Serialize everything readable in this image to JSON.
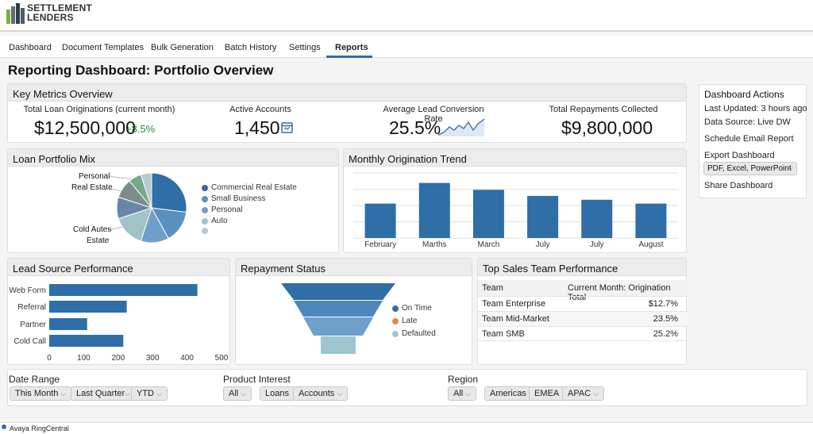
{
  "brand": {
    "name_line1": "SETTLEMENT",
    "name_line2": "LENDERS"
  },
  "tabs": [
    "Dashboard",
    "Document Templates",
    "Bulk Generation",
    "Batch History",
    "Settings",
    "Reports"
  ],
  "page_title": "Reporting Dashboard: Portfolio Overview",
  "key_metrics": {
    "title": "Key Metrics Overview",
    "items": [
      {
        "label": "Total Loan Originations (current month)",
        "value": "$12,500,000",
        "change": "+8.5%"
      },
      {
        "label": "Active Accounts",
        "value": "1,450",
        "icon": "calendar-icon"
      },
      {
        "label": "Average Lead Conversion Rate",
        "value": "25.5%",
        "icon": "sparkline-icon"
      },
      {
        "label": "Total Repayments Collected",
        "value": "$9,800,000"
      }
    ]
  },
  "portfolio_mix": {
    "title": "Loan Portfolio Mix",
    "callouts": [
      "Personal",
      "Real Estate",
      "Cold Autes",
      "Estate"
    ],
    "legend": [
      {
        "label": "Commercial Real Estate",
        "color": "#2f6ea7"
      },
      {
        "label": "Small Business",
        "color": "#5a8fc0"
      },
      {
        "label": "Personal",
        "color": "#6e9fc9"
      },
      {
        "label": "Auto",
        "color": "#9ec5d0"
      },
      {
        "label": "",
        "color": "#b9c6d6"
      }
    ]
  },
  "chart_data": [
    {
      "type": "bar",
      "title": "Monthly Origination Trend",
      "categories": [
        "February",
        "Marths",
        "March",
        "July",
        "July",
        "August"
      ],
      "values": [
        45,
        72,
        63,
        55,
        50,
        45
      ],
      "ylim": [
        0,
        85
      ],
      "grid": true
    },
    {
      "type": "bar",
      "orientation": "horizontal",
      "title": "Lead Source Performance",
      "categories": [
        "Web Form",
        "Referral",
        "Partner",
        "Cold Call"
      ],
      "values": [
        430,
        225,
        110,
        215
      ],
      "xlim": [
        0,
        500
      ],
      "ticks": [
        "0",
        "100",
        "200",
        "300",
        "400",
        "500"
      ]
    },
    {
      "type": "pie",
      "title": "Loan Portfolio Mix",
      "slices": [
        {
          "label": "Commercial Real Estate",
          "value": 27,
          "color": "#2f6ea7"
        },
        {
          "label": "Small Business",
          "value": 15,
          "color": "#5a8fc0"
        },
        {
          "label": "Personal",
          "value": 13,
          "color": "#6e9fc9"
        },
        {
          "label": "Auto",
          "value": 15,
          "color": "#9fc3c6"
        },
        {
          "label": "",
          "value": 10,
          "color": "#6a86a6"
        },
        {
          "label": "",
          "value": 9,
          "color": "#7b8c8a"
        },
        {
          "label": "",
          "value": 6,
          "color": "#77aa85"
        },
        {
          "label": "",
          "value": 5,
          "color": "#b9c6d6"
        }
      ]
    }
  ],
  "repayment": {
    "title": "Repayment Status",
    "legend": [
      {
        "label": "On Time",
        "color": "#2f6ea7"
      },
      {
        "label": "Late",
        "color": "#d88a52"
      },
      {
        "label": "Defaulted",
        "color": "#9ec5d0"
      }
    ]
  },
  "sales_team": {
    "title": "Top Sales Team Performance",
    "headers": [
      "Team",
      "Current Month: Origination Total"
    ],
    "rows": [
      {
        "team": "Team Enterprise",
        "value": "$12.7%"
      },
      {
        "team": "Team Mid-Market",
        "value": "23.5%"
      },
      {
        "team": "Team SMB",
        "value": "25.2%"
      }
    ]
  },
  "actions": {
    "title": "Dashboard Actions",
    "last_updated": "Last Updated: 3 hours ago",
    "data_source": "Data Source: Live DW",
    "schedule": "Schedule Email Report",
    "export_label": "Export Dashboard",
    "export_value": "PDF, Excel, PowerPoint",
    "share": "Share Dashboard"
  },
  "filters": {
    "date_range": {
      "label": "Date Range",
      "options": [
        "This Month",
        "Last Quarter",
        "YTD"
      ]
    },
    "product": {
      "label": "Product Interest",
      "options": [
        "All",
        "Loans",
        "Accounts"
      ]
    },
    "region": {
      "label": "Region",
      "options": [
        "All",
        "Americas",
        "EMEA",
        "APAC"
      ]
    }
  },
  "status_bar": {
    "text": "Avaya RingCentral"
  }
}
